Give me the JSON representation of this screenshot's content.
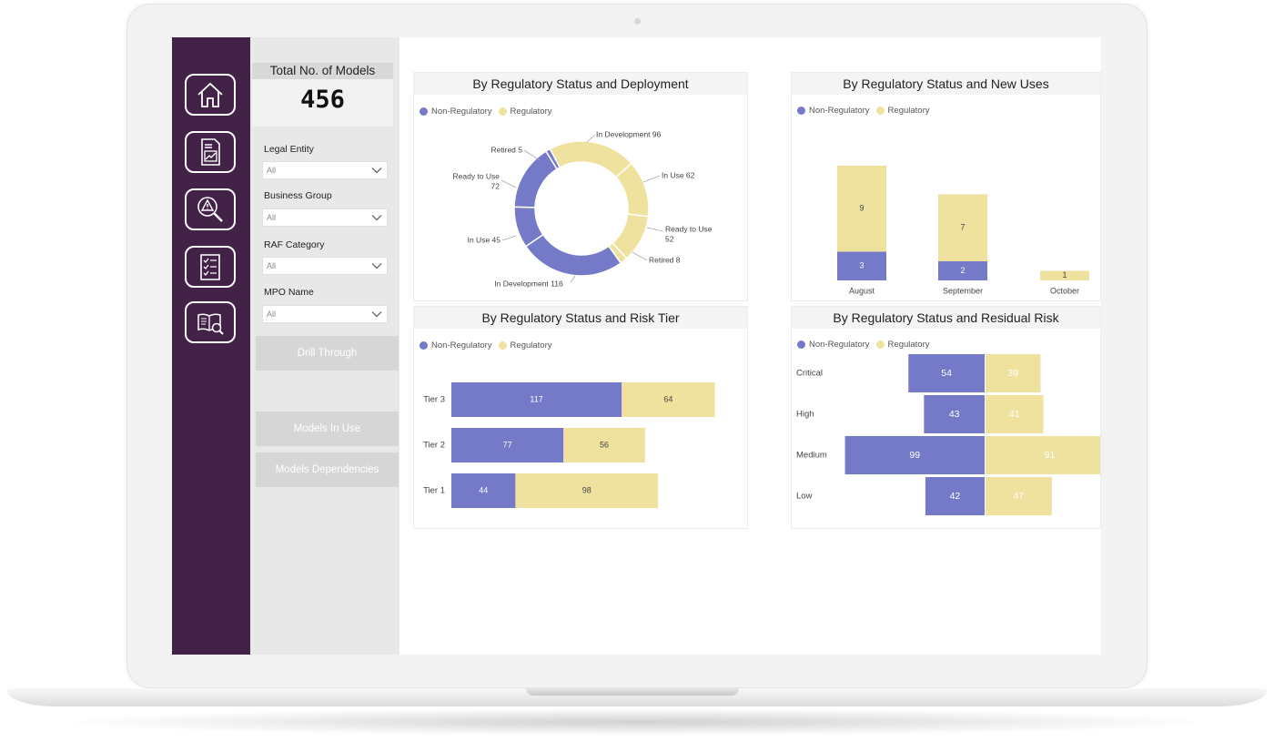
{
  "colors": {
    "non_regulatory": "#7479c8",
    "regulatory": "#efe29f",
    "nav_bg": "#432248"
  },
  "nav": [
    {
      "icon": "home-icon"
    },
    {
      "icon": "report-chart-icon"
    },
    {
      "icon": "risk-search-icon"
    },
    {
      "icon": "checklist-icon"
    },
    {
      "icon": "book-search-icon"
    }
  ],
  "kpi": {
    "title": "Total No. of Models",
    "value": "456"
  },
  "filters": [
    {
      "label": "Legal Entity",
      "value": "All"
    },
    {
      "label": "Business Group",
      "value": "All"
    },
    {
      "label": "RAF Category",
      "value": "All"
    },
    {
      "label": "MPO Name",
      "value": "All"
    }
  ],
  "buttons": {
    "drill_through": "Drill Through",
    "models_in_use": "Models In Use",
    "models_dependencies": "Models Dependencies"
  },
  "legend": {
    "non_regulatory": "Non-Regulatory",
    "regulatory": "Regulatory"
  },
  "chart_data": [
    {
      "type": "pie",
      "title": "By Regulatory Status and Deployment",
      "donut": true,
      "slices": [
        {
          "series": "Regulatory",
          "label": "In Development",
          "value": 96
        },
        {
          "series": "Regulatory",
          "label": "In Use",
          "value": 62
        },
        {
          "series": "Regulatory",
          "label": "Ready to Use",
          "value": 52
        },
        {
          "series": "Regulatory",
          "label": "Retired",
          "value": 8
        },
        {
          "series": "Non-Regulatory",
          "label": "In Development",
          "value": 116
        },
        {
          "series": "Non-Regulatory",
          "label": "In Use",
          "value": 45
        },
        {
          "series": "Non-Regulatory",
          "label": "Ready to Use",
          "value": 72
        },
        {
          "series": "Non-Regulatory",
          "label": "Retired",
          "value": 5
        }
      ],
      "slice_labels": [
        "In Development 96",
        "In Use 62",
        "Ready to Use 52",
        "Retired 8",
        "In Development 116",
        "In Use 45",
        "Ready to Use 72",
        "Retired 5"
      ]
    },
    {
      "type": "bar",
      "title": "By Regulatory Status and New Uses",
      "stacked": true,
      "categories": [
        "August",
        "September",
        "October"
      ],
      "series": [
        {
          "name": "Non-Regulatory",
          "values": [
            3,
            2,
            0
          ]
        },
        {
          "name": "Regulatory",
          "values": [
            9,
            7,
            1
          ]
        }
      ]
    },
    {
      "type": "bar",
      "title": "By Regulatory Status and Risk Tier",
      "orientation": "horizontal",
      "stacked": true,
      "categories": [
        "Tier 3",
        "Tier 2",
        "Tier 1"
      ],
      "series": [
        {
          "name": "Non-Regulatory",
          "values": [
            117,
            77,
            44
          ]
        },
        {
          "name": "Regulatory",
          "values": [
            64,
            56,
            98
          ]
        }
      ]
    },
    {
      "type": "bar",
      "title": "By Regulatory Status and Residual Risk",
      "orientation": "horizontal",
      "diverging": true,
      "categories": [
        "Critical",
        "High",
        "Medium",
        "Low"
      ],
      "series": [
        {
          "name": "Non-Regulatory",
          "values": [
            54,
            43,
            99,
            42
          ]
        },
        {
          "name": "Regulatory",
          "values": [
            39,
            41,
            91,
            47
          ]
        }
      ]
    }
  ]
}
